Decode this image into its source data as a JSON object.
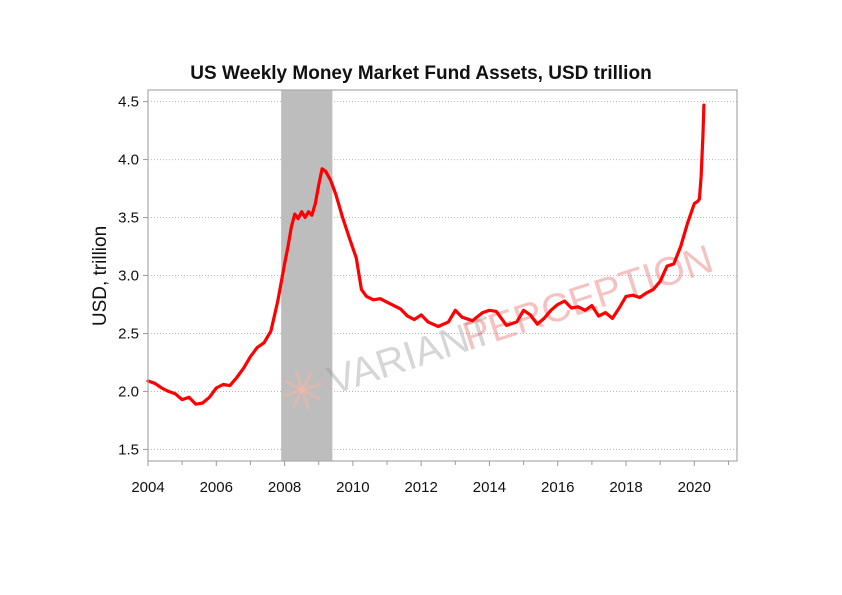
{
  "chart_data": {
    "type": "line",
    "title": "US Weekly Money Market Fund Assets, USD trillion",
    "xlabel": "",
    "ylabel": "USD, trillion",
    "xlim": [
      2004.0,
      2021.25
    ],
    "ylim": [
      1.4,
      4.6
    ],
    "x_ticks": [
      "2004",
      "2006",
      "2008",
      "2010",
      "2012",
      "2014",
      "2016",
      "2018",
      "2020"
    ],
    "y_ticks": [
      "1.5",
      "2.0",
      "2.5",
      "3.0",
      "3.5",
      "4.0",
      "4.5"
    ],
    "grid": "horizontal",
    "shaded_region": {
      "x_start": 2007.9,
      "x_end": 2009.4,
      "color": "#bdbdbd"
    },
    "watermark": {
      "part1": "VARIANT",
      "part2": "PERCEPTION"
    },
    "series": [
      {
        "color": "#ff0000",
        "points": [
          [
            2004.0,
            2.09
          ],
          [
            2004.2,
            2.07
          ],
          [
            2004.4,
            2.03
          ],
          [
            2004.6,
            2.0
          ],
          [
            2004.8,
            1.98
          ],
          [
            2005.0,
            1.93
          ],
          [
            2005.2,
            1.95
          ],
          [
            2005.4,
            1.89
          ],
          [
            2005.6,
            1.9
          ],
          [
            2005.8,
            1.95
          ],
          [
            2006.0,
            2.03
          ],
          [
            2006.2,
            2.06
          ],
          [
            2006.4,
            2.05
          ],
          [
            2006.6,
            2.12
          ],
          [
            2006.8,
            2.2
          ],
          [
            2007.0,
            2.3
          ],
          [
            2007.2,
            2.38
          ],
          [
            2007.4,
            2.42
          ],
          [
            2007.6,
            2.52
          ],
          [
            2007.8,
            2.78
          ],
          [
            2008.0,
            3.1
          ],
          [
            2008.1,
            3.25
          ],
          [
            2008.2,
            3.42
          ],
          [
            2008.3,
            3.53
          ],
          [
            2008.4,
            3.49
          ],
          [
            2008.5,
            3.55
          ],
          [
            2008.6,
            3.5
          ],
          [
            2008.7,
            3.55
          ],
          [
            2008.8,
            3.52
          ],
          [
            2008.9,
            3.62
          ],
          [
            2009.0,
            3.78
          ],
          [
            2009.1,
            3.92
          ],
          [
            2009.2,
            3.9
          ],
          [
            2009.35,
            3.82
          ],
          [
            2009.5,
            3.7
          ],
          [
            2009.7,
            3.5
          ],
          [
            2009.9,
            3.32
          ],
          [
            2010.1,
            3.15
          ],
          [
            2010.25,
            2.88
          ],
          [
            2010.4,
            2.82
          ],
          [
            2010.6,
            2.79
          ],
          [
            2010.8,
            2.8
          ],
          [
            2011.0,
            2.77
          ],
          [
            2011.2,
            2.74
          ],
          [
            2011.4,
            2.71
          ],
          [
            2011.6,
            2.65
          ],
          [
            2011.8,
            2.62
          ],
          [
            2012.0,
            2.66
          ],
          [
            2012.2,
            2.6
          ],
          [
            2012.5,
            2.56
          ],
          [
            2012.8,
            2.6
          ],
          [
            2013.0,
            2.7
          ],
          [
            2013.2,
            2.64
          ],
          [
            2013.5,
            2.61
          ],
          [
            2013.8,
            2.68
          ],
          [
            2014.0,
            2.7
          ],
          [
            2014.2,
            2.69
          ],
          [
            2014.5,
            2.57
          ],
          [
            2014.8,
            2.6
          ],
          [
            2015.0,
            2.7
          ],
          [
            2015.2,
            2.66
          ],
          [
            2015.4,
            2.58
          ],
          [
            2015.6,
            2.63
          ],
          [
            2015.8,
            2.7
          ],
          [
            2016.0,
            2.75
          ],
          [
            2016.2,
            2.78
          ],
          [
            2016.4,
            2.72
          ],
          [
            2016.6,
            2.73
          ],
          [
            2016.8,
            2.7
          ],
          [
            2017.0,
            2.74
          ],
          [
            2017.2,
            2.65
          ],
          [
            2017.4,
            2.68
          ],
          [
            2017.6,
            2.63
          ],
          [
            2017.8,
            2.72
          ],
          [
            2018.0,
            2.82
          ],
          [
            2018.2,
            2.83
          ],
          [
            2018.4,
            2.81
          ],
          [
            2018.6,
            2.85
          ],
          [
            2018.8,
            2.88
          ],
          [
            2019.0,
            2.95
          ],
          [
            2019.2,
            3.08
          ],
          [
            2019.4,
            3.1
          ],
          [
            2019.6,
            3.25
          ],
          [
            2019.8,
            3.45
          ],
          [
            2020.0,
            3.62
          ],
          [
            2020.1,
            3.64
          ],
          [
            2020.15,
            3.66
          ],
          [
            2020.2,
            3.85
          ],
          [
            2020.25,
            4.2
          ],
          [
            2020.28,
            4.47
          ]
        ]
      }
    ]
  }
}
